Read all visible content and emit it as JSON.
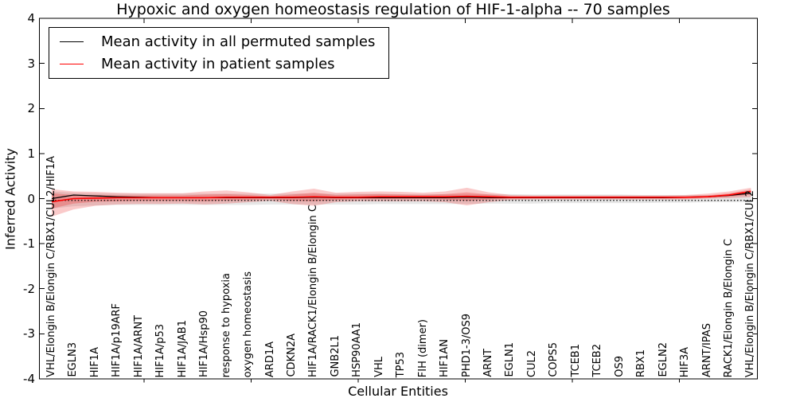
{
  "figure": {
    "title": "Hypoxic and oxygen homeostasis regulation of HIF-1-alpha -- 70 samples",
    "xlabel": "Cellular Entities",
    "ylabel": "Inferred Activity"
  },
  "legend": {
    "items": [
      {
        "label": "Mean activity in all permuted samples",
        "color": "#000000"
      },
      {
        "label": "Mean activity in patient samples",
        "color": "#ff0000"
      }
    ]
  },
  "chart_data": {
    "type": "line",
    "title": "Hypoxic and oxygen homeostasis regulation of HIF-1-alpha -- 70 samples",
    "xlabel": "Cellular Entities",
    "ylabel": "Inferred Activity",
    "ylim": [
      -4,
      4
    ],
    "yticks": [
      4,
      3,
      2,
      1,
      0,
      -1,
      -2,
      -3,
      -4
    ],
    "ytick_labels": [
      "4",
      "3",
      "2",
      "1",
      "0",
      "-1",
      "-2",
      "-3",
      "-4"
    ],
    "grid": false,
    "legend_position": "upper left",
    "baseline": -0.04,
    "baseline_color": "#000000",
    "categories": [
      "VHL/Elongin B/Elongin C/RBX1/CUL2/HIF1A",
      "EGLN3",
      "HIF1A",
      "HIF1A/p19ARF",
      "HIF1A/ARNT",
      "HIF1A/p53",
      "HIF1A/JAB1",
      "HIF1A/Hsp90",
      "response to hypoxia",
      "oxygen homeostasis",
      "ARD1A",
      "CDKN2A",
      "HIF1A/RACK1/Elongin B/Elongin C",
      "GNB2L1",
      "HSP90AA1",
      "VHL",
      "TP53",
      "FIH (dimer)",
      "HIF1AN",
      "PHD1-3/OS9",
      "ARNT",
      "EGLN1",
      "CUL2",
      "COPS5",
      "TCEB1",
      "TCEB2",
      "OS9",
      "RBX1",
      "EGLN2",
      "HIF3A",
      "ARNT/IPAS",
      "RACK1/Elongin B/Elongin C",
      "VHL/Elongin B/Elongin C/RBX1/CUL2"
    ],
    "series": [
      {
        "name": "Mean activity in all permuted samples",
        "color": "#000000",
        "style": "solid",
        "values": [
          0.0,
          0.08,
          0.06,
          0.04,
          0.03,
          0.02,
          0.02,
          0.02,
          0.02,
          0.02,
          0.02,
          0.02,
          0.03,
          0.02,
          0.02,
          0.02,
          0.02,
          0.02,
          0.02,
          0.03,
          0.02,
          0.02,
          0.02,
          0.02,
          0.02,
          0.02,
          0.02,
          0.02,
          0.02,
          0.03,
          0.04,
          0.07,
          0.12
        ]
      },
      {
        "name": "Mean activity in patient samples",
        "color": "#ff0000",
        "style": "solid",
        "values": [
          -0.07,
          0.0,
          0.01,
          0.02,
          0.02,
          0.02,
          0.02,
          0.02,
          0.03,
          0.03,
          0.03,
          0.03,
          0.04,
          0.03,
          0.03,
          0.04,
          0.04,
          0.04,
          0.04,
          0.05,
          0.04,
          0.03,
          0.03,
          0.03,
          0.03,
          0.03,
          0.03,
          0.03,
          0.03,
          0.03,
          0.04,
          0.08,
          0.16
        ]
      }
    ],
    "bands": [
      {
        "name": "permuted-range",
        "color": "rgba(115,115,115,0.18)",
        "high": [
          0.16,
          0.13,
          0.12,
          0.11,
          0.11,
          0.11,
          0.11,
          0.11,
          0.11,
          0.11,
          0.11,
          0.11,
          0.11,
          0.11,
          0.11,
          0.11,
          0.1,
          0.1,
          0.1,
          0.1,
          0.1,
          0.1,
          0.09,
          0.09,
          0.09,
          0.09,
          0.09,
          0.08,
          0.08,
          0.08,
          0.08,
          0.08,
          0.09
        ],
        "low": [
          -0.22,
          -0.17,
          -0.15,
          -0.14,
          -0.14,
          -0.14,
          -0.14,
          -0.14,
          -0.14,
          -0.14,
          -0.13,
          -0.13,
          -0.13,
          -0.13,
          -0.13,
          -0.12,
          -0.12,
          -0.12,
          -0.12,
          -0.12,
          -0.11,
          -0.11,
          -0.11,
          -0.1,
          -0.1,
          -0.1,
          -0.1,
          -0.1,
          -0.09,
          -0.09,
          -0.08,
          -0.08,
          -0.07
        ]
      },
      {
        "name": "patient-range-outer",
        "color": "rgba(235,35,35,0.24)",
        "high": [
          0.21,
          0.16,
          0.15,
          0.13,
          0.12,
          0.12,
          0.12,
          0.16,
          0.18,
          0.14,
          0.08,
          0.16,
          0.22,
          0.13,
          0.15,
          0.16,
          0.15,
          0.13,
          0.16,
          0.24,
          0.14,
          0.08,
          0.07,
          0.07,
          0.07,
          0.07,
          0.07,
          0.07,
          0.07,
          0.08,
          0.11,
          0.16,
          0.24
        ],
        "low": [
          -0.4,
          -0.24,
          -0.16,
          -0.13,
          -0.12,
          -0.12,
          -0.11,
          -0.13,
          -0.11,
          -0.08,
          -0.05,
          -0.12,
          -0.16,
          -0.08,
          -0.06,
          -0.06,
          -0.06,
          -0.06,
          -0.08,
          -0.15,
          -0.08,
          -0.03,
          -0.02,
          -0.02,
          -0.02,
          -0.02,
          -0.02,
          -0.02,
          -0.02,
          -0.02,
          0.0,
          0.01,
          0.03
        ]
      },
      {
        "name": "patient-range-inner",
        "color": "rgba(235,35,35,0.28)",
        "high": [
          0.12,
          0.08,
          0.08,
          0.07,
          0.07,
          0.07,
          0.07,
          0.09,
          0.1,
          0.08,
          0.05,
          0.09,
          0.13,
          0.08,
          0.09,
          0.1,
          0.09,
          0.08,
          0.1,
          0.14,
          0.09,
          0.05,
          0.05,
          0.05,
          0.05,
          0.05,
          0.05,
          0.05,
          0.05,
          0.05,
          0.07,
          0.12,
          0.2
        ],
        "low": [
          -0.22,
          -0.11,
          -0.07,
          -0.06,
          -0.05,
          -0.05,
          -0.05,
          -0.06,
          -0.04,
          -0.03,
          -0.01,
          -0.05,
          -0.06,
          -0.03,
          -0.01,
          -0.01,
          -0.01,
          -0.01,
          -0.02,
          -0.05,
          -0.02,
          0.0,
          0.0,
          0.0,
          0.0,
          0.0,
          0.0,
          0.0,
          0.0,
          0.0,
          0.02,
          0.04,
          0.09
        ]
      }
    ]
  }
}
